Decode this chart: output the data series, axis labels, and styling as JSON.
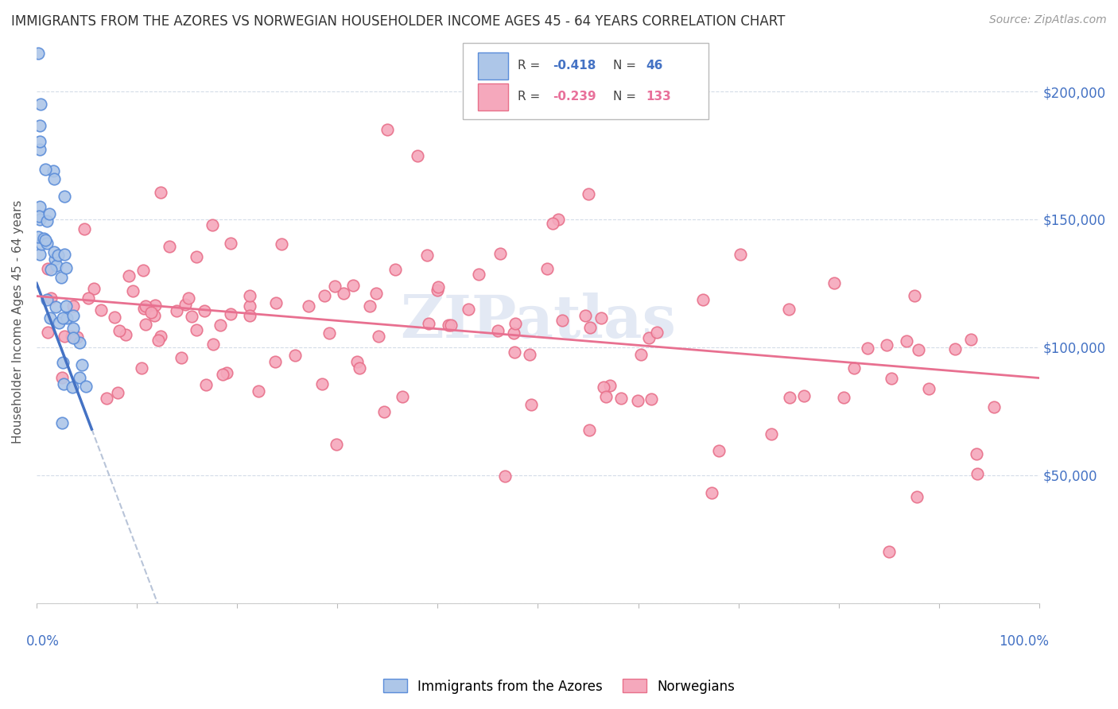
{
  "title": "IMMIGRANTS FROM THE AZORES VS NORWEGIAN HOUSEHOLDER INCOME AGES 45 - 64 YEARS CORRELATION CHART",
  "source": "Source: ZipAtlas.com",
  "ylabel": "Householder Income Ages 45 - 64 years",
  "xlim": [
    0.0,
    1.0
  ],
  "ylim": [
    0,
    220000
  ],
  "R1": -0.418,
  "N1": 46,
  "R2": -0.239,
  "N2": 133,
  "color_azores_fill": "#adc6e8",
  "color_azores_edge": "#5b8dd9",
  "color_norwegian_fill": "#f5a8bc",
  "color_norwegian_edge": "#e8708a",
  "color_azores_line": "#4472c4",
  "color_norwegian_line": "#e87090",
  "color_dashed": "#b8c4d8",
  "legend1_label": "Immigrants from the Azores",
  "legend2_label": "Norwegians",
  "watermark": "ZIPatlas"
}
